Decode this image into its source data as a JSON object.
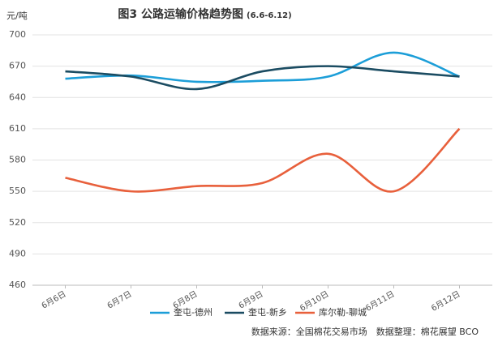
{
  "chart_data": {
    "type": "line",
    "title": "图3 公路运输价格趋势图",
    "subtitle": "(6.6-6.12)",
    "y_label": "元/吨",
    "categories": [
      "6月6日",
      "6月7日",
      "6月8日",
      "6月9日",
      "6月10日",
      "6月11日",
      "6月12日"
    ],
    "series": [
      {
        "name": "奎屯-德州",
        "color": "#1c9ed8",
        "values": [
          658,
          661,
          655,
          656,
          660,
          683,
          660
        ]
      },
      {
        "name": "奎屯-新乡",
        "color": "#1b4c62",
        "values": [
          665,
          660,
          648,
          665,
          670,
          665,
          660
        ]
      },
      {
        "name": "库尔勒-聊城",
        "color": "#e8603c",
        "values": [
          563,
          550,
          555,
          558,
          586,
          550,
          610
        ]
      }
    ],
    "ylim": [
      460,
      700
    ],
    "yticks": [
      460,
      490,
      520,
      550,
      580,
      610,
      640,
      670,
      700
    ],
    "grid": true,
    "source": "数据来源：全国棉花交易市场　数据整理：棉花展望 BCO"
  }
}
